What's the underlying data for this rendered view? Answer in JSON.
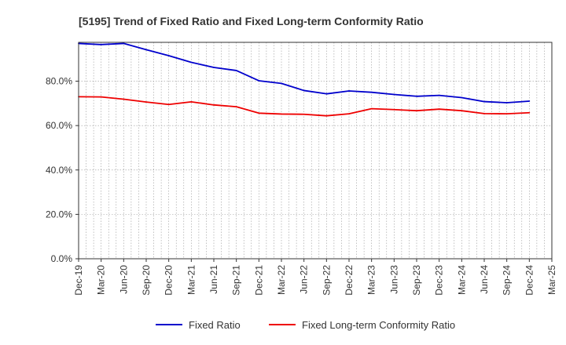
{
  "chart_data": {
    "type": "line",
    "title": "[5195]  Trend of Fixed Ratio and Fixed Long-term Conformity Ratio",
    "xlabel": "",
    "ylabel": "",
    "ylim": [
      0,
      97.5
    ],
    "y_tick_values": [
      0,
      20,
      40,
      60,
      80
    ],
    "y_tick_labels": [
      "0.0%",
      "20.0%",
      "40.0%",
      "60.0%",
      "80.0%"
    ],
    "x": [
      "Dec-19",
      "Mar-20",
      "Jun-20",
      "Sep-20",
      "Dec-20",
      "Mar-21",
      "Jun-21",
      "Sep-21",
      "Dec-21",
      "Mar-22",
      "Jun-22",
      "Sep-22",
      "Dec-22",
      "Mar-23",
      "Jun-23",
      "Sep-23",
      "Dec-23",
      "Mar-24",
      "Jun-24",
      "Sep-24",
      "Dec-24",
      "Mar-25"
    ],
    "grid": true,
    "legend_position": "bottom",
    "series": [
      {
        "name": "Fixed Ratio",
        "color": "#0000cc",
        "values": [
          97.0,
          96.5,
          97.0,
          94.2,
          91.5,
          88.5,
          86.2,
          84.8,
          80.2,
          79.0,
          75.8,
          74.3,
          75.6,
          75.0,
          74.0,
          73.2,
          73.6,
          72.6,
          70.8,
          70.3,
          71.0,
          null
        ]
      },
      {
        "name": "Fixed Long-term Conformity Ratio",
        "color": "#ee0000",
        "values": [
          73.0,
          72.9,
          71.9,
          70.6,
          69.5,
          70.7,
          69.3,
          68.5,
          65.6,
          65.2,
          65.1,
          64.4,
          65.3,
          67.6,
          67.2,
          66.7,
          67.4,
          66.7,
          65.4,
          65.3,
          65.8,
          null
        ]
      }
    ]
  }
}
